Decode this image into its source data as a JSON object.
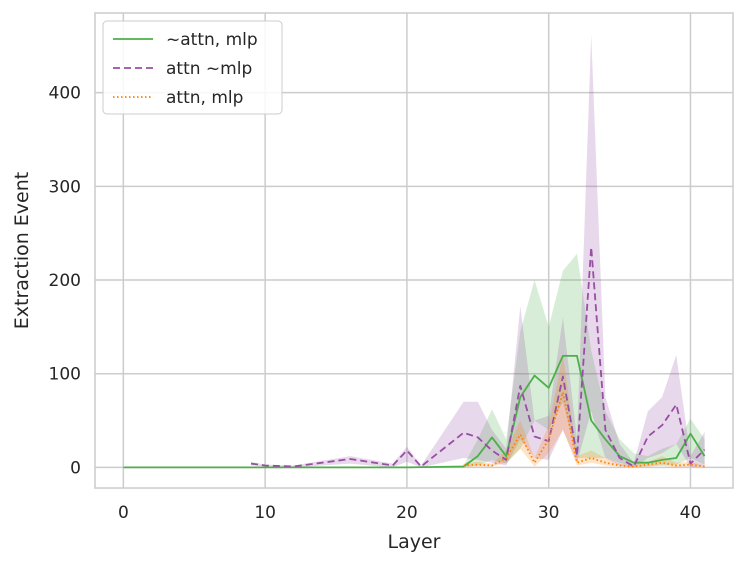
{
  "chart_data": {
    "type": "line",
    "xlabel": "Layer",
    "ylabel": "Extraction Event",
    "xlim": [
      -2,
      43
    ],
    "ylim": [
      -22,
      485
    ],
    "xticks": [
      0,
      10,
      20,
      30,
      40
    ],
    "yticks": [
      0,
      100,
      200,
      300,
      400
    ],
    "grid": true,
    "legend_position": "top-left",
    "series": [
      {
        "name": "~attn, mlp",
        "color": "#4daf4a",
        "dash": "solid",
        "x": [
          0,
          5,
          9,
          12,
          16,
          20,
          24,
          25,
          26,
          27,
          28,
          29,
          30,
          31,
          32,
          33,
          34,
          35,
          36,
          37,
          38,
          39,
          40,
          41
        ],
        "values": [
          0,
          0,
          0,
          0,
          0,
          0,
          1,
          12,
          32,
          12,
          75,
          98,
          85,
          119,
          119,
          50,
          30,
          12,
          5,
          5,
          8,
          10,
          36,
          12
        ],
        "lower": [
          0,
          0,
          0,
          0,
          0,
          0,
          0,
          2,
          8,
          4,
          20,
          50,
          40,
          70,
          10,
          10,
          10,
          5,
          1,
          1,
          2,
          3,
          10,
          3
        ],
        "upper": [
          0,
          0,
          0,
          0,
          0,
          0,
          2,
          30,
          62,
          30,
          145,
          200,
          150,
          210,
          228,
          125,
          60,
          30,
          15,
          12,
          20,
          25,
          52,
          30
        ]
      },
      {
        "name": "attn ~mlp",
        "color": "#984ea3",
        "dash": "dashed",
        "x": [
          9,
          10,
          12,
          16,
          19,
          20,
          21,
          24,
          25,
          26,
          27,
          28,
          29,
          30,
          31,
          32,
          33,
          34,
          35,
          36,
          37,
          38,
          39,
          40,
          41
        ],
        "values": [
          4,
          2,
          1,
          9,
          2,
          18,
          1,
          37,
          32,
          18,
          8,
          87,
          33,
          28,
          97,
          12,
          235,
          40,
          10,
          1,
          33,
          45,
          67,
          4,
          19
        ],
        "lower": [
          2,
          1,
          0,
          4,
          0,
          6,
          0,
          10,
          8,
          5,
          2,
          30,
          10,
          8,
          40,
          5,
          60,
          10,
          2,
          0,
          10,
          15,
          25,
          0,
          2
        ],
        "upper": [
          6,
          3,
          2,
          12,
          4,
          22,
          2,
          70,
          70,
          40,
          20,
          172,
          50,
          55,
          160,
          30,
          462,
          75,
          25,
          5,
          60,
          75,
          120,
          12,
          38
        ]
      },
      {
        "name": "attn, mlp",
        "color": "#ff7f00",
        "dash": "dotted",
        "x": [
          24,
          25,
          26,
          27,
          28,
          29,
          30,
          31,
          32,
          33,
          34,
          35,
          36,
          37,
          38,
          39,
          40,
          41
        ],
        "values": [
          2,
          3,
          2,
          10,
          35,
          5,
          30,
          80,
          5,
          10,
          5,
          2,
          1,
          3,
          5,
          2,
          3,
          1
        ],
        "lower": [
          1,
          1,
          1,
          5,
          20,
          1,
          15,
          40,
          2,
          5,
          2,
          1,
          0,
          1,
          2,
          0,
          1,
          0
        ],
        "upper": [
          4,
          6,
          4,
          18,
          50,
          10,
          45,
          120,
          12,
          18,
          10,
          4,
          2,
          6,
          12,
          5,
          6,
          2
        ]
      }
    ]
  }
}
